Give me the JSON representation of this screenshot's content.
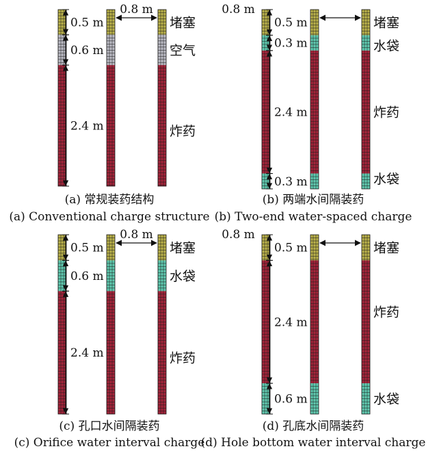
{
  "colors": {
    "stemming": "#b8b04a",
    "air": "#b9b9c2",
    "water": "#5fc8ae",
    "explosive": "#a3243a",
    "mesh": "#1a1a1a"
  },
  "panels": [
    {
      "id": "a",
      "caption_cn": "(a) 常规装药结构",
      "caption_en": "(a) Conventional charge structure",
      "spacing_label": "0.8 m",
      "segments": [
        {
          "material": "stemming",
          "length": 0.5
        },
        {
          "material": "air",
          "length": 0.6
        },
        {
          "material": "explosive",
          "length": 2.4
        }
      ],
      "dims": [
        {
          "text": "0.5 m",
          "from": 0,
          "to": 0.5
        },
        {
          "text": "0.6 m",
          "from": 0.5,
          "to": 1.1
        },
        {
          "text": "2.4 m",
          "from": 1.1,
          "to": 3.5
        }
      ],
      "zone_labels": [
        {
          "text": "堵塞",
          "at": 0.25
        },
        {
          "text": "空气",
          "at": 0.8
        },
        {
          "text": "炸药",
          "at": 2.4
        }
      ]
    },
    {
      "id": "b",
      "caption_cn": "(b) 两端水间隔装药",
      "caption_en": "(b) Two-end water-spaced charge",
      "spacing_label": "0.8 m",
      "segments": [
        {
          "material": "stemming",
          "length": 0.5
        },
        {
          "material": "water",
          "length": 0.3
        },
        {
          "material": "explosive",
          "length": 2.4
        },
        {
          "material": "water",
          "length": 0.3
        }
      ],
      "dims": [
        {
          "text": "0.5 m",
          "from": 0,
          "to": 0.5
        },
        {
          "text": "0.3 m",
          "from": 0.5,
          "to": 0.8
        },
        {
          "text": "2.4 m",
          "from": 0.8,
          "to": 3.2
        },
        {
          "text": "0.3 m",
          "from": 3.2,
          "to": 3.5
        }
      ],
      "zone_labels": [
        {
          "text": "堵塞",
          "at": 0.25
        },
        {
          "text": "水袋",
          "at": 0.7
        },
        {
          "text": "炸药",
          "at": 2.0
        },
        {
          "text": "水袋",
          "at": 3.3
        }
      ]
    },
    {
      "id": "c",
      "caption_cn": "(c) 孔口水间隔装药",
      "caption_en": "(c) Orifice water interval charge",
      "spacing_label": "0.8 m",
      "segments": [
        {
          "material": "stemming",
          "length": 0.5
        },
        {
          "material": "water",
          "length": 0.6
        },
        {
          "material": "explosive",
          "length": 2.4
        }
      ],
      "dims": [
        {
          "text": "0.5 m",
          "from": 0,
          "to": 0.5
        },
        {
          "text": "0.6 m",
          "from": 0.5,
          "to": 1.1
        },
        {
          "text": "2.4 m",
          "from": 1.1,
          "to": 3.5
        }
      ],
      "zone_labels": [
        {
          "text": "堵塞",
          "at": 0.25
        },
        {
          "text": "水袋",
          "at": 0.8
        },
        {
          "text": "炸药",
          "at": 2.4
        }
      ]
    },
    {
      "id": "d",
      "caption_cn": "(d) 孔底水间隔装药",
      "caption_en": "(d) Hole bottom water interval charge",
      "spacing_label": "0.8 m",
      "segments": [
        {
          "material": "stemming",
          "length": 0.5
        },
        {
          "material": "explosive",
          "length": 2.4
        },
        {
          "material": "water",
          "length": 0.6
        }
      ],
      "dims": [
        {
          "text": "0.5 m",
          "from": 0,
          "to": 0.5
        },
        {
          "text": "2.4 m",
          "from": 0.5,
          "to": 2.9
        },
        {
          "text": "0.6 m",
          "from": 2.9,
          "to": 3.5
        }
      ],
      "zone_labels": [
        {
          "text": "堵塞",
          "at": 0.25
        },
        {
          "text": "炸药",
          "at": 1.5
        },
        {
          "text": "水袋",
          "at": 3.2
        }
      ]
    }
  ]
}
